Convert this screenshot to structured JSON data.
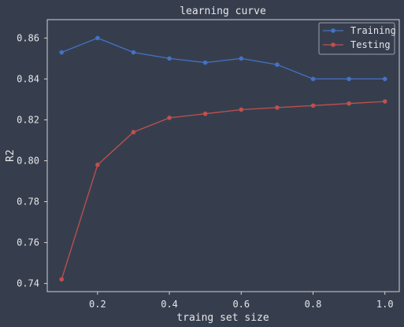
{
  "chart_data": {
    "type": "line",
    "title": "learning curve",
    "xlabel": "traing set size",
    "ylabel": "R2",
    "xlim": [
      0.06,
      1.04
    ],
    "ylim": [
      0.736,
      0.869
    ],
    "xticks": [
      {
        "value": 0.2,
        "label": "0.2"
      },
      {
        "value": 0.4,
        "label": "0.4"
      },
      {
        "value": 0.6,
        "label": "0.6"
      },
      {
        "value": 0.8,
        "label": "0.8"
      },
      {
        "value": 1.0,
        "label": "1.0"
      }
    ],
    "yticks": [
      {
        "value": 0.74,
        "label": "0.74"
      },
      {
        "value": 0.76,
        "label": "0.76"
      },
      {
        "value": 0.78,
        "label": "0.78"
      },
      {
        "value": 0.8,
        "label": "0.80"
      },
      {
        "value": 0.82,
        "label": "0.82"
      },
      {
        "value": 0.84,
        "label": "0.84"
      },
      {
        "value": 0.86,
        "label": "0.86"
      }
    ],
    "grid": false,
    "legend_position": "top-right",
    "x": [
      0.1,
      0.2,
      0.3,
      0.4,
      0.5,
      0.6,
      0.7,
      0.8,
      0.9,
      1.0
    ],
    "series": [
      {
        "name": "Training",
        "color": "#4472c4",
        "values": [
          0.853,
          0.86,
          0.853,
          0.85,
          0.848,
          0.85,
          0.847,
          0.84,
          0.84,
          0.84
        ]
      },
      {
        "name": "Testing",
        "color": "#c0504d",
        "values": [
          0.742,
          0.798,
          0.814,
          0.821,
          0.823,
          0.825,
          0.826,
          0.827,
          0.828,
          0.829
        ]
      }
    ]
  }
}
